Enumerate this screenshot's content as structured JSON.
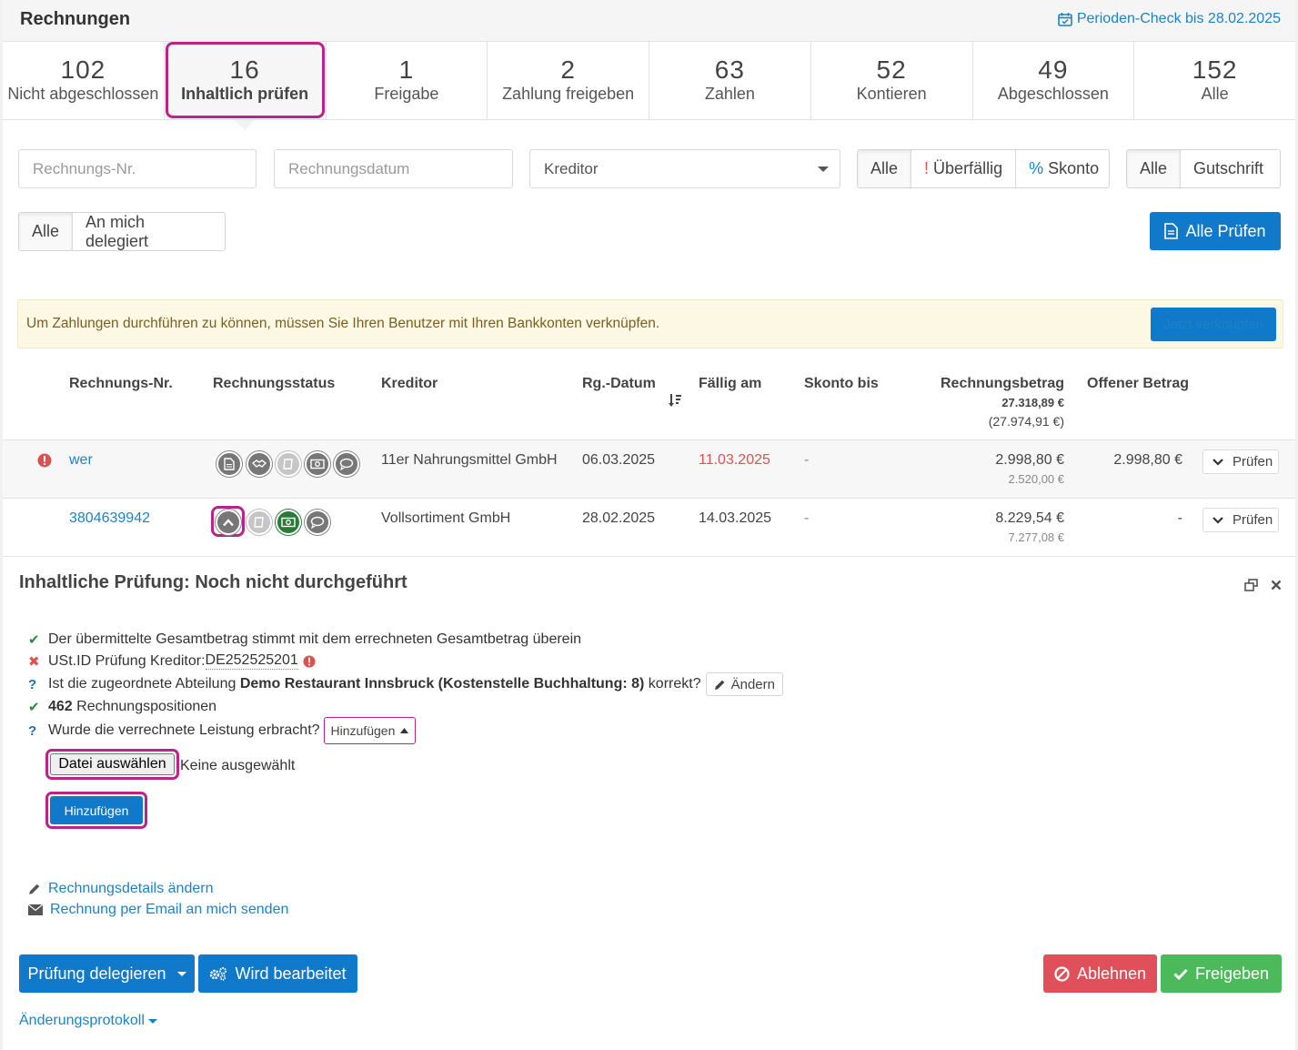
{
  "header": {
    "title": "Rechnungen",
    "period_check": "Perioden-Check bis 28.02.2025"
  },
  "tabs": [
    {
      "count": "102",
      "label": "Nicht abgeschlossen"
    },
    {
      "count": "16",
      "label": "Inhaltlich prüfen"
    },
    {
      "count": "1",
      "label": "Freigabe"
    },
    {
      "count": "2",
      "label": "Zahlung freigeben"
    },
    {
      "count": "63",
      "label": "Zahlen"
    },
    {
      "count": "52",
      "label": "Kontieren"
    },
    {
      "count": "49",
      "label": "Abgeschlossen"
    },
    {
      "count": "152",
      "label": "Alle"
    }
  ],
  "filters": {
    "invoice_no_placeholder": "Rechnungs-Nr.",
    "invoice_date_placeholder": "Rechnungsdatum",
    "creditor_placeholder": "Kreditor",
    "due_group": [
      "Alle",
      "!",
      "Überfällig",
      "%",
      "Skonto"
    ],
    "type_group": [
      "Alle",
      "Gutschrift"
    ],
    "delegate_group": [
      "Alle",
      "An mich delegiert"
    ],
    "check_all_label": "Alle Prüfen"
  },
  "alert": {
    "message": "Um Zahlungen durchführen zu können, müssen Sie Ihren Benutzer mit Ihren Bankkonten verknüpfen.",
    "button": "Jetzt verknüpfen"
  },
  "table": {
    "headers": {
      "invoice_no": "Rechnungs-Nr.",
      "status": "Rechnungsstatus",
      "creditor": "Kreditor",
      "date": "Rg.-Datum",
      "due": "Fällig am",
      "skonto": "Skonto bis",
      "amount": "Rechnungsbetrag",
      "amount_total": "27.318,89 €",
      "amount_total_sub": "(27.974,91 €)",
      "open": "Offener Betrag"
    },
    "rows": [
      {
        "invoice_no": "wer",
        "creditor": "11er Nahrungsmittel GmbH",
        "date": "06.03.2025",
        "due": "11.03.2025",
        "skonto": "-",
        "amount": "2.998,80 €",
        "amount_net": "2.520,00 €",
        "open": "2.998,80 €",
        "action": "Prüfen"
      },
      {
        "invoice_no": "3804639942",
        "creditor": "Vollsortiment GmbH",
        "date": "28.02.2025",
        "due": "14.03.2025",
        "skonto": "-",
        "amount": "8.229,54 €",
        "amount_net": "7.277,08 €",
        "open": "-",
        "action": "Prüfen"
      }
    ]
  },
  "detail": {
    "title": "Inhaltliche Prüfung: Noch nicht durchgeführt",
    "checks": {
      "total": "Der übermittelte Gesamtbetrag stimmt mit dem errechneten Gesamtbetrag überein",
      "vat_prefix": "USt.ID Prüfung Kreditor: ",
      "vat_id": "DE252525201",
      "dept_prefix": "Ist die zugeordnete Abteilung ",
      "dept_name": "Demo Restaurant Innsbruck (Kostenstelle Buchhaltung: 8)",
      "dept_suffix": " korrekt?",
      "dept_button": "Ändern",
      "positions_count": "462",
      "positions_label": " Rechnungspositionen",
      "service_question": "Wurde die verrechnete Leistung erbracht?",
      "service_button": "Hinzufügen"
    },
    "file_button": "Datei auswählen",
    "file_status": "Keine ausgewählt",
    "add_button": "Hinzufügen",
    "links": {
      "edit_details": "Rechnungsdetails ändern",
      "send_email": "Rechnung per Email an mich senden"
    },
    "actions": {
      "delegate": "Prüfung delegieren",
      "in_progress": "Wird bearbeitet",
      "reject": "Ablehnen",
      "approve": "Freigeben"
    },
    "changelog": "Änderungsprotokoll"
  },
  "colors": {
    "primary": "#1179c9",
    "highlight": "#b8258a",
    "danger": "#e0505a",
    "success": "#4cba5a",
    "overdue": "#d9534f"
  }
}
